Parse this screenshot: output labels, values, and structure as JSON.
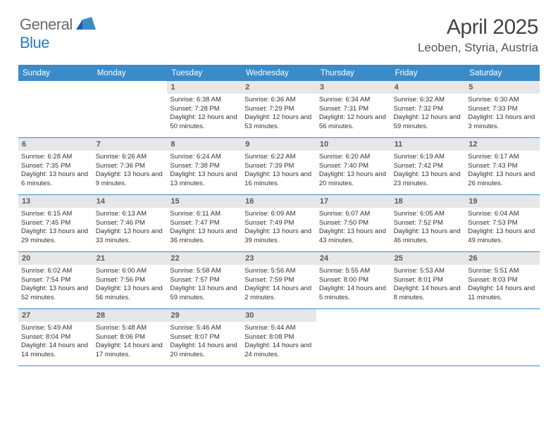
{
  "colors": {
    "header_bg": "#3b8bc9",
    "header_text": "#ffffff",
    "daynum_bg": "#e7e7e7",
    "daynum_text": "#5a5a5a",
    "body_text": "#333333",
    "border": "#3b8bc9",
    "logo_gray": "#6a6a6a",
    "logo_blue": "#2b7bbf",
    "title_text": "#444444"
  },
  "logo": {
    "part1": "General",
    "part2": "Blue"
  },
  "title": "April 2025",
  "location": "Leoben, Styria, Austria",
  "day_names": [
    "Sunday",
    "Monday",
    "Tuesday",
    "Wednesday",
    "Thursday",
    "Friday",
    "Saturday"
  ],
  "weeks": [
    [
      {
        "n": "",
        "sr": "",
        "ss": "",
        "dl": ""
      },
      {
        "n": "",
        "sr": "",
        "ss": "",
        "dl": ""
      },
      {
        "n": "1",
        "sr": "Sunrise: 6:38 AM",
        "ss": "Sunset: 7:28 PM",
        "dl": "Daylight: 12 hours and 50 minutes."
      },
      {
        "n": "2",
        "sr": "Sunrise: 6:36 AM",
        "ss": "Sunset: 7:29 PM",
        "dl": "Daylight: 12 hours and 53 minutes."
      },
      {
        "n": "3",
        "sr": "Sunrise: 6:34 AM",
        "ss": "Sunset: 7:31 PM",
        "dl": "Daylight: 12 hours and 56 minutes."
      },
      {
        "n": "4",
        "sr": "Sunrise: 6:32 AM",
        "ss": "Sunset: 7:32 PM",
        "dl": "Daylight: 12 hours and 59 minutes."
      },
      {
        "n": "5",
        "sr": "Sunrise: 6:30 AM",
        "ss": "Sunset: 7:33 PM",
        "dl": "Daylight: 13 hours and 3 minutes."
      }
    ],
    [
      {
        "n": "6",
        "sr": "Sunrise: 6:28 AM",
        "ss": "Sunset: 7:35 PM",
        "dl": "Daylight: 13 hours and 6 minutes."
      },
      {
        "n": "7",
        "sr": "Sunrise: 6:26 AM",
        "ss": "Sunset: 7:36 PM",
        "dl": "Daylight: 13 hours and 9 minutes."
      },
      {
        "n": "8",
        "sr": "Sunrise: 6:24 AM",
        "ss": "Sunset: 7:38 PM",
        "dl": "Daylight: 13 hours and 13 minutes."
      },
      {
        "n": "9",
        "sr": "Sunrise: 6:22 AM",
        "ss": "Sunset: 7:39 PM",
        "dl": "Daylight: 13 hours and 16 minutes."
      },
      {
        "n": "10",
        "sr": "Sunrise: 6:20 AM",
        "ss": "Sunset: 7:40 PM",
        "dl": "Daylight: 13 hours and 20 minutes."
      },
      {
        "n": "11",
        "sr": "Sunrise: 6:19 AM",
        "ss": "Sunset: 7:42 PM",
        "dl": "Daylight: 13 hours and 23 minutes."
      },
      {
        "n": "12",
        "sr": "Sunrise: 6:17 AM",
        "ss": "Sunset: 7:43 PM",
        "dl": "Daylight: 13 hours and 26 minutes."
      }
    ],
    [
      {
        "n": "13",
        "sr": "Sunrise: 6:15 AM",
        "ss": "Sunset: 7:45 PM",
        "dl": "Daylight: 13 hours and 29 minutes."
      },
      {
        "n": "14",
        "sr": "Sunrise: 6:13 AM",
        "ss": "Sunset: 7:46 PM",
        "dl": "Daylight: 13 hours and 33 minutes."
      },
      {
        "n": "15",
        "sr": "Sunrise: 6:11 AM",
        "ss": "Sunset: 7:47 PM",
        "dl": "Daylight: 13 hours and 36 minutes."
      },
      {
        "n": "16",
        "sr": "Sunrise: 6:09 AM",
        "ss": "Sunset: 7:49 PM",
        "dl": "Daylight: 13 hours and 39 minutes."
      },
      {
        "n": "17",
        "sr": "Sunrise: 6:07 AM",
        "ss": "Sunset: 7:50 PM",
        "dl": "Daylight: 13 hours and 43 minutes."
      },
      {
        "n": "18",
        "sr": "Sunrise: 6:05 AM",
        "ss": "Sunset: 7:52 PM",
        "dl": "Daylight: 13 hours and 46 minutes."
      },
      {
        "n": "19",
        "sr": "Sunrise: 6:04 AM",
        "ss": "Sunset: 7:53 PM",
        "dl": "Daylight: 13 hours and 49 minutes."
      }
    ],
    [
      {
        "n": "20",
        "sr": "Sunrise: 6:02 AM",
        "ss": "Sunset: 7:54 PM",
        "dl": "Daylight: 13 hours and 52 minutes."
      },
      {
        "n": "21",
        "sr": "Sunrise: 6:00 AM",
        "ss": "Sunset: 7:56 PM",
        "dl": "Daylight: 13 hours and 56 minutes."
      },
      {
        "n": "22",
        "sr": "Sunrise: 5:58 AM",
        "ss": "Sunset: 7:57 PM",
        "dl": "Daylight: 13 hours and 59 minutes."
      },
      {
        "n": "23",
        "sr": "Sunrise: 5:56 AM",
        "ss": "Sunset: 7:59 PM",
        "dl": "Daylight: 14 hours and 2 minutes."
      },
      {
        "n": "24",
        "sr": "Sunrise: 5:55 AM",
        "ss": "Sunset: 8:00 PM",
        "dl": "Daylight: 14 hours and 5 minutes."
      },
      {
        "n": "25",
        "sr": "Sunrise: 5:53 AM",
        "ss": "Sunset: 8:01 PM",
        "dl": "Daylight: 14 hours and 8 minutes."
      },
      {
        "n": "26",
        "sr": "Sunrise: 5:51 AM",
        "ss": "Sunset: 8:03 PM",
        "dl": "Daylight: 14 hours and 11 minutes."
      }
    ],
    [
      {
        "n": "27",
        "sr": "Sunrise: 5:49 AM",
        "ss": "Sunset: 8:04 PM",
        "dl": "Daylight: 14 hours and 14 minutes."
      },
      {
        "n": "28",
        "sr": "Sunrise: 5:48 AM",
        "ss": "Sunset: 8:06 PM",
        "dl": "Daylight: 14 hours and 17 minutes."
      },
      {
        "n": "29",
        "sr": "Sunrise: 5:46 AM",
        "ss": "Sunset: 8:07 PM",
        "dl": "Daylight: 14 hours and 20 minutes."
      },
      {
        "n": "30",
        "sr": "Sunrise: 5:44 AM",
        "ss": "Sunset: 8:08 PM",
        "dl": "Daylight: 14 hours and 24 minutes."
      },
      {
        "n": "",
        "sr": "",
        "ss": "",
        "dl": ""
      },
      {
        "n": "",
        "sr": "",
        "ss": "",
        "dl": ""
      },
      {
        "n": "",
        "sr": "",
        "ss": "",
        "dl": ""
      }
    ]
  ]
}
